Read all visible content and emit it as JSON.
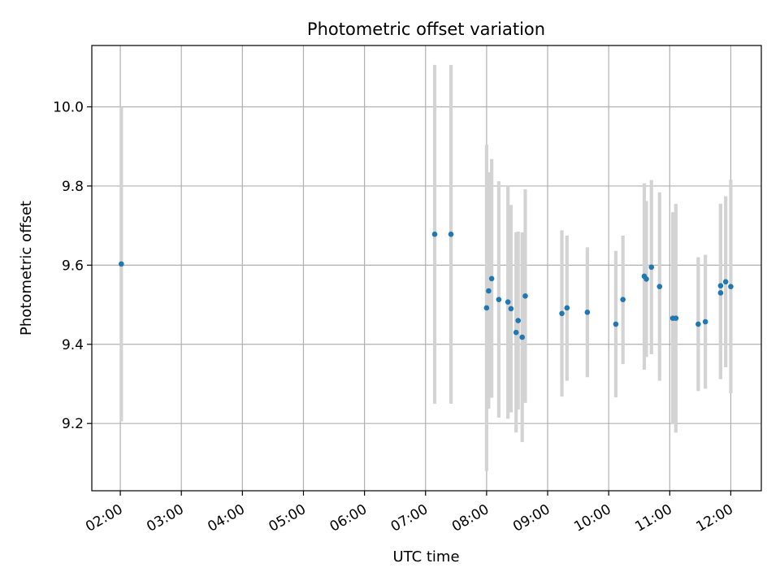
{
  "chart_data": {
    "type": "scatter",
    "title": "Photometric offset variation",
    "xlabel": "UTC time",
    "ylabel": "Photometric offset",
    "x_tick_labels": [
      "02:00",
      "03:00",
      "04:00",
      "05:00",
      "06:00",
      "07:00",
      "08:00",
      "09:00",
      "10:00",
      "11:00",
      "12:00"
    ],
    "y_tick_labels": [
      "9.2",
      "9.4",
      "9.6",
      "9.8",
      "10.0"
    ],
    "xlim": [
      "01:32",
      "12:30"
    ],
    "ylim": [
      9.03,
      10.155
    ],
    "grid": true,
    "colors": {
      "point": "#1f77b4",
      "errorbar": "#d3d3d3",
      "grid": "#b0b0b0",
      "axes": "#000000"
    },
    "series": [
      {
        "points": [
          {
            "x": "02:01",
            "y": 9.603,
            "ylow": 9.205,
            "yhigh": 10.0
          },
          {
            "x": "07:09",
            "y": 9.678,
            "ylow": 9.25,
            "yhigh": 10.106
          },
          {
            "x": "07:25",
            "y": 9.678,
            "ylow": 9.25,
            "yhigh": 10.106
          },
          {
            "x": "08:00",
            "y": 9.492,
            "ylow": 9.08,
            "yhigh": 9.904
          },
          {
            "x": "08:02",
            "y": 9.535,
            "ylow": 9.237,
            "yhigh": 9.835
          },
          {
            "x": "08:05",
            "y": 9.566,
            "ylow": 9.265,
            "yhigh": 9.868
          },
          {
            "x": "08:12",
            "y": 9.513,
            "ylow": 9.215,
            "yhigh": 9.812
          },
          {
            "x": "08:21",
            "y": 9.507,
            "ylow": 9.212,
            "yhigh": 9.802
          },
          {
            "x": "08:24",
            "y": 9.49,
            "ylow": 9.228,
            "yhigh": 9.752
          },
          {
            "x": "08:29",
            "y": 9.43,
            "ylow": 9.177,
            "yhigh": 9.683
          },
          {
            "x": "08:31",
            "y": 9.46,
            "ylow": 9.235,
            "yhigh": 9.685
          },
          {
            "x": "08:35",
            "y": 9.418,
            "ylow": 9.153,
            "yhigh": 9.683
          },
          {
            "x": "08:38",
            "y": 9.522,
            "ylow": 9.252,
            "yhigh": 9.792
          },
          {
            "x": "09:14",
            "y": 9.478,
            "ylow": 9.268,
            "yhigh": 9.688
          },
          {
            "x": "09:19",
            "y": 9.492,
            "ylow": 9.308,
            "yhigh": 9.675
          },
          {
            "x": "09:39",
            "y": 9.481,
            "ylow": 9.317,
            "yhigh": 9.645
          },
          {
            "x": "10:07",
            "y": 9.451,
            "ylow": 9.266,
            "yhigh": 9.636
          },
          {
            "x": "10:14",
            "y": 9.513,
            "ylow": 9.35,
            "yhigh": 9.675
          },
          {
            "x": "10:35",
            "y": 9.572,
            "ylow": 9.336,
            "yhigh": 9.807
          },
          {
            "x": "10:37",
            "y": 9.565,
            "ylow": 9.368,
            "yhigh": 9.762
          },
          {
            "x": "10:42",
            "y": 9.595,
            "ylow": 9.375,
            "yhigh": 9.815
          },
          {
            "x": "10:50",
            "y": 9.546,
            "ylow": 9.308,
            "yhigh": 9.784
          },
          {
            "x": "11:03",
            "y": 9.466,
            "ylow": 9.198,
            "yhigh": 9.734
          },
          {
            "x": "11:06",
            "y": 9.466,
            "ylow": 9.177,
            "yhigh": 9.755
          },
          {
            "x": "11:28",
            "y": 9.451,
            "ylow": 9.282,
            "yhigh": 9.62
          },
          {
            "x": "11:35",
            "y": 9.457,
            "ylow": 9.288,
            "yhigh": 9.626
          },
          {
            "x": "11:50",
            "y": 9.548,
            "ylow": 9.312,
            "yhigh": 9.755
          },
          {
            "x": "11:50",
            "y": 9.53,
            "ylow": 9.312,
            "yhigh": 9.755
          },
          {
            "x": "11:55",
            "y": 9.558,
            "ylow": 9.342,
            "yhigh": 9.774
          },
          {
            "x": "12:00",
            "y": 9.546,
            "ylow": 9.276,
            "yhigh": 9.816
          }
        ]
      }
    ]
  }
}
